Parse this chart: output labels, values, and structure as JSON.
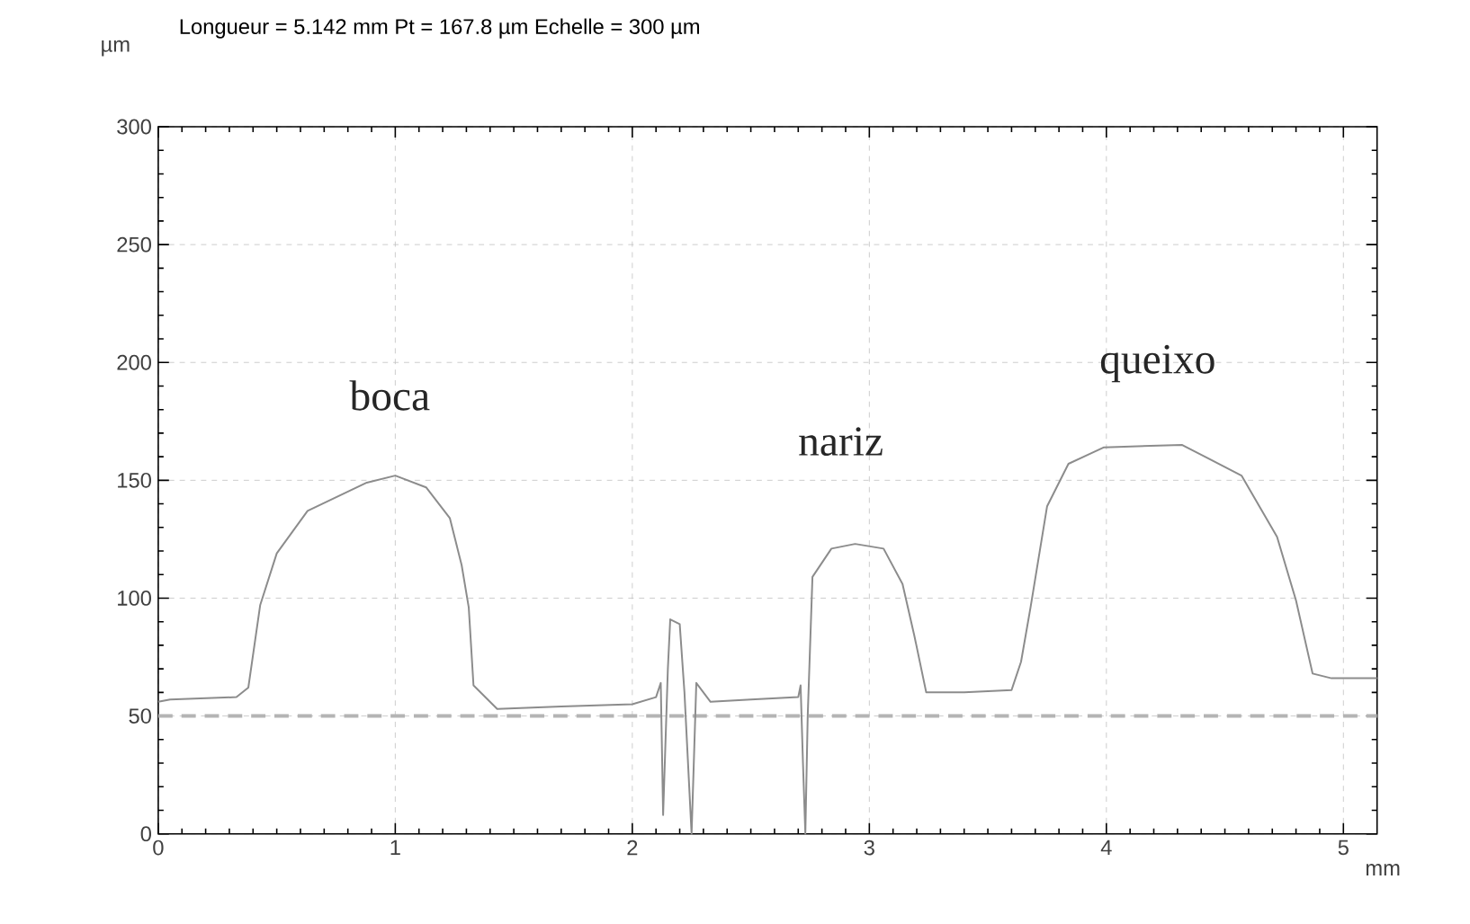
{
  "chart_data": {
    "type": "line",
    "title": "Longueur = 5.142 mm  Pt = 167.8 µm  Echelle = 300 µm",
    "xlabel": "mm",
    "ylabel": "µm",
    "xlim": [
      0,
      5.142
    ],
    "ylim": [
      0,
      300
    ],
    "xticks": [
      0,
      1,
      2,
      3,
      4,
      5
    ],
    "yticks": [
      0,
      50,
      100,
      150,
      200,
      250,
      300
    ],
    "grid": true,
    "line_style": "solid",
    "marker": "none",
    "ref_lines": [
      {
        "axis": "y",
        "value": 50,
        "color": "#b4b4b4",
        "line_style": "dashed"
      }
    ],
    "annotations": [
      "boca",
      "nariz",
      "queixo"
    ],
    "series": [
      {
        "color": "#8c8c8c",
        "x": [
          0,
          0.05,
          0.33,
          0.38,
          0.43,
          0.5,
          0.63,
          0.88,
          1.0,
          1.13,
          1.23,
          1.28,
          1.31,
          1.33,
          1.43,
          1.7,
          2.0,
          2.1,
          2.12,
          2.13,
          2.15,
          2.16,
          2.2,
          2.22,
          2.25,
          2.27,
          2.33,
          2.5,
          2.7,
          2.71,
          2.72,
          2.73,
          2.74,
          2.76,
          2.84,
          2.94,
          3.06,
          3.14,
          3.19,
          3.24,
          3.4,
          3.6,
          3.64,
          3.68,
          3.75,
          3.84,
          3.99,
          4.32,
          4.57,
          4.72,
          4.8,
          4.87,
          4.95,
          5.142
        ],
        "values": [
          56,
          57,
          58,
          62,
          97,
          119,
          137,
          149,
          152,
          147,
          134,
          114,
          96,
          63,
          53,
          54,
          55,
          58,
          64,
          8,
          70,
          91,
          89,
          60,
          0,
          64,
          56,
          57,
          58,
          63,
          30,
          0,
          50,
          109,
          121,
          123,
          121,
          106,
          84,
          60,
          60,
          61,
          73,
          96,
          139,
          157,
          164,
          165,
          152,
          126,
          99,
          68,
          66,
          66
        ]
      }
    ]
  }
}
